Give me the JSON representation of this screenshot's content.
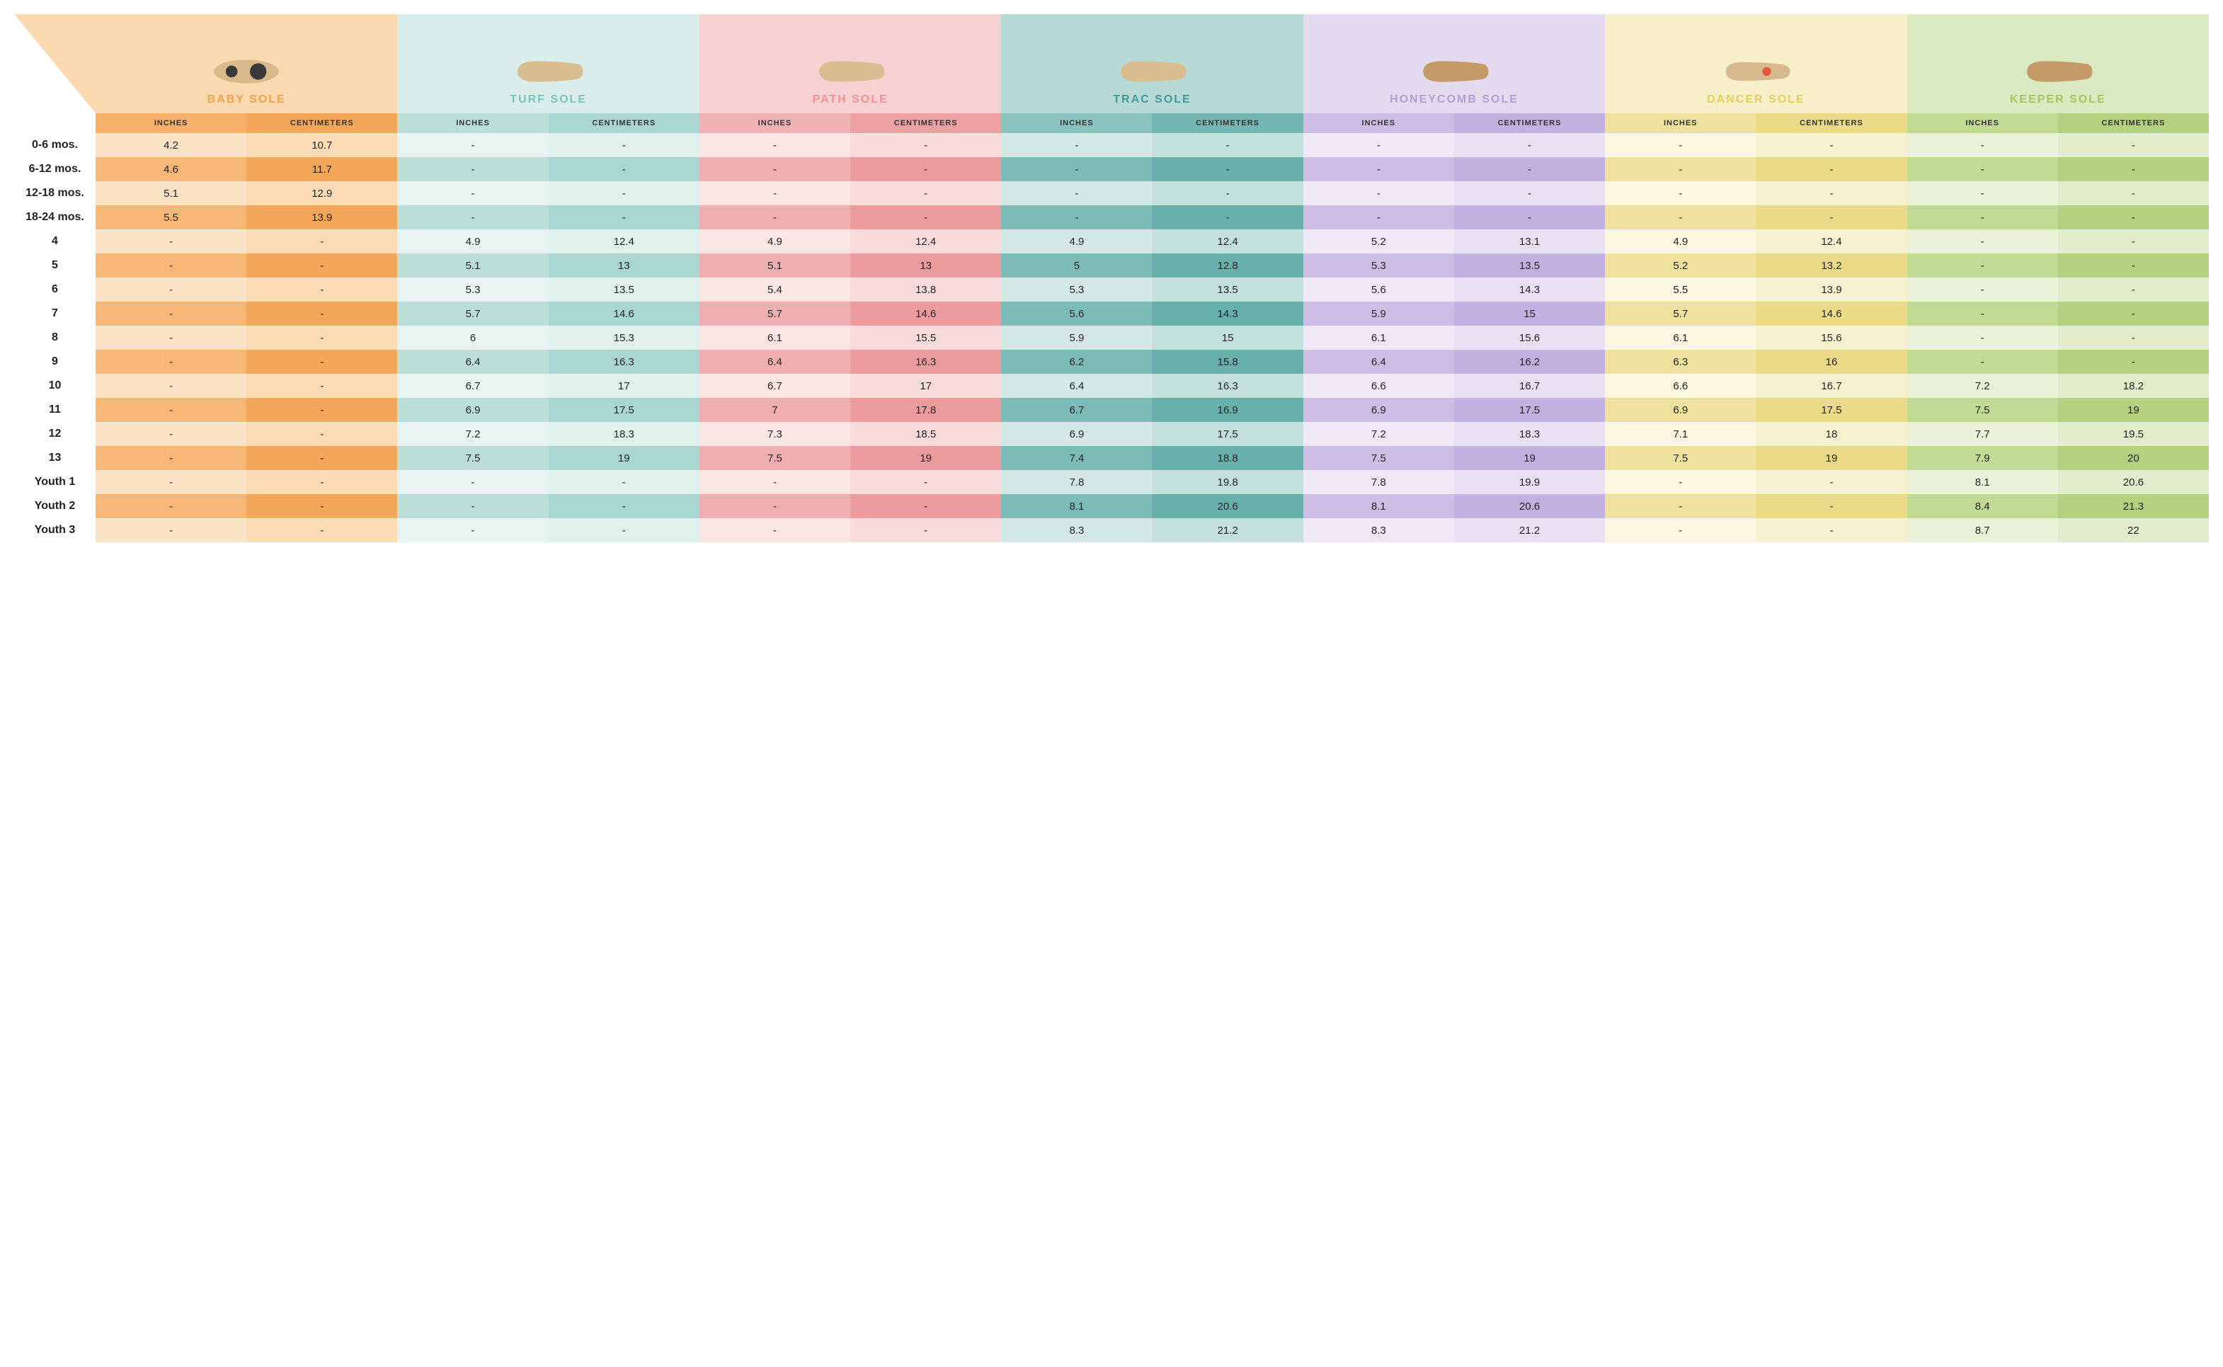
{
  "row_label_width": "115px",
  "col_width": "1fr",
  "sub_labels": {
    "inches": "INCHES",
    "cm": "CENTIMETERS"
  },
  "soles": [
    {
      "key": "baby",
      "label": "BABY SOLE",
      "label_color": "#f2a24a",
      "header_bg": "#fbd9b0",
      "sub_bg_inches": "#f7b06a",
      "sub_bg_cm": "#f4a659",
      "row_light_inches": "#fbe3c5",
      "row_light_cm": "#fbdcb6",
      "row_dark_inches": "#f7b877",
      "row_dark_cm": "#f4a659"
    },
    {
      "key": "turf",
      "label": "TURF SOLE",
      "label_color": "#79c6bd",
      "header_bg": "#daedea",
      "sub_bg_inches": "#bcded9",
      "sub_bg_cm": "#a9d6d0",
      "row_light_inches": "#e9f3f1",
      "row_light_cm": "#dff0ed",
      "row_dark_inches": "#bcded9",
      "row_dark_cm": "#a9d6d0"
    },
    {
      "key": "path",
      "label": "PATH SOLE",
      "label_color": "#f19193",
      "header_bg": "#f7d1d2",
      "sub_bg_inches": "#f0b3b4",
      "sub_bg_cm": "#eda1a2",
      "row_light_inches": "#fbe5e5",
      "row_light_cm": "#f9dbdc",
      "row_dark_inches": "#efafb0",
      "row_dark_cm": "#ec9b9d"
    },
    {
      "key": "trac",
      "label": "TRAC SOLE",
      "label_color": "#3f9a98",
      "header_bg": "#b6d9d6",
      "sub_bg_inches": "#8ac2be",
      "sub_bg_cm": "#74b6b1",
      "row_light_inches": "#d4e8e6",
      "row_light_cm": "#c4e0dd",
      "row_dark_inches": "#7dbbb7",
      "row_dark_cm": "#67b0ab"
    },
    {
      "key": "honeycomb",
      "label": "HONEYCOMB SOLE",
      "label_color": "#b39ed8",
      "header_bg": "#e3daf0",
      "sub_bg_inches": "#cdbee6",
      "sub_bg_cm": "#c1b0e0",
      "row_light_inches": "#efe9f7",
      "row_light_cm": "#e8e0f3",
      "row_dark_inches": "#cdbee6",
      "row_dark_cm": "#c1b0e0"
    },
    {
      "key": "dancer",
      "label": "DANCER SOLE",
      "label_color": "#e3cf5c",
      "header_bg": "#f6efc9",
      "sub_bg_inches": "#efe29e",
      "sub_bg_cm": "#ebdb88",
      "row_light_inches": "#faf6df",
      "row_light_cm": "#f7f1d0",
      "row_dark_inches": "#efe29e",
      "row_dark_cm": "#ebdb88"
    },
    {
      "key": "keeper",
      "label": "KEEPER SOLE",
      "label_color": "#a2c85d",
      "header_bg": "#dbe9c1",
      "sub_bg_inches": "#c1da94",
      "sub_bg_cm": "#b3d17e",
      "row_light_inches": "#eaf2da",
      "row_light_cm": "#e1edcb",
      "row_dark_inches": "#c1da94",
      "row_dark_cm": "#b3d17e"
    }
  ],
  "rows": [
    {
      "label": "0-6 mos.",
      "values": [
        [
          "4.2",
          "10.7"
        ],
        [
          "-",
          "-"
        ],
        [
          "-",
          "-"
        ],
        [
          "-",
          "-"
        ],
        [
          "-",
          "-"
        ],
        [
          "-",
          "-"
        ],
        [
          "-",
          "-"
        ]
      ]
    },
    {
      "label": "6-12 mos.",
      "values": [
        [
          "4.6",
          "11.7"
        ],
        [
          "-",
          "-"
        ],
        [
          "-",
          "-"
        ],
        [
          "-",
          "-"
        ],
        [
          "-",
          "-"
        ],
        [
          "-",
          "-"
        ],
        [
          "-",
          "-"
        ]
      ]
    },
    {
      "label": "12-18 mos.",
      "values": [
        [
          "5.1",
          "12.9"
        ],
        [
          "-",
          "-"
        ],
        [
          "-",
          "-"
        ],
        [
          "-",
          "-"
        ],
        [
          "-",
          "-"
        ],
        [
          "-",
          "-"
        ],
        [
          "-",
          "-"
        ]
      ]
    },
    {
      "label": "18-24 mos.",
      "values": [
        [
          "5.5",
          "13.9"
        ],
        [
          "-",
          "-"
        ],
        [
          "-",
          "-"
        ],
        [
          "-",
          "-"
        ],
        [
          "-",
          "-"
        ],
        [
          "-",
          "-"
        ],
        [
          "-",
          "-"
        ]
      ]
    },
    {
      "label": "4",
      "values": [
        [
          "-",
          "-"
        ],
        [
          "4.9",
          "12.4"
        ],
        [
          "4.9",
          "12.4"
        ],
        [
          "4.9",
          "12.4"
        ],
        [
          "5.2",
          "13.1"
        ],
        [
          "4.9",
          "12.4"
        ],
        [
          "-",
          "-"
        ]
      ]
    },
    {
      "label": "5",
      "values": [
        [
          "-",
          "-"
        ],
        [
          "5.1",
          "13"
        ],
        [
          "5.1",
          "13"
        ],
        [
          "5",
          "12.8"
        ],
        [
          "5.3",
          "13.5"
        ],
        [
          "5.2",
          "13.2"
        ],
        [
          "-",
          "-"
        ]
      ]
    },
    {
      "label": "6",
      "values": [
        [
          "-",
          "-"
        ],
        [
          "5.3",
          "13.5"
        ],
        [
          "5.4",
          "13.8"
        ],
        [
          "5.3",
          "13.5"
        ],
        [
          "5.6",
          "14.3"
        ],
        [
          "5.5",
          "13.9"
        ],
        [
          "-",
          "-"
        ]
      ]
    },
    {
      "label": "7",
      "values": [
        [
          "-",
          "-"
        ],
        [
          "5.7",
          "14.6"
        ],
        [
          "5.7",
          "14.6"
        ],
        [
          "5.6",
          "14.3"
        ],
        [
          "5.9",
          "15"
        ],
        [
          "5.7",
          "14.6"
        ],
        [
          "-",
          "-"
        ]
      ]
    },
    {
      "label": "8",
      "values": [
        [
          "-",
          "-"
        ],
        [
          "6",
          "15.3"
        ],
        [
          "6.1",
          "15.5"
        ],
        [
          "5.9",
          "15"
        ],
        [
          "6.1",
          "15.6"
        ],
        [
          "6.1",
          "15.6"
        ],
        [
          "-",
          "-"
        ]
      ]
    },
    {
      "label": "9",
      "values": [
        [
          "-",
          "-"
        ],
        [
          "6.4",
          "16.3"
        ],
        [
          "6.4",
          "16.3"
        ],
        [
          "6.2",
          "15.8"
        ],
        [
          "6.4",
          "16.2"
        ],
        [
          "6.3",
          "16"
        ],
        [
          "-",
          "-"
        ]
      ]
    },
    {
      "label": "10",
      "values": [
        [
          "-",
          "-"
        ],
        [
          "6.7",
          "17"
        ],
        [
          "6.7",
          "17"
        ],
        [
          "6.4",
          "16.3"
        ],
        [
          "6.6",
          "16.7"
        ],
        [
          "6.6",
          "16.7"
        ],
        [
          "7.2",
          "18.2"
        ]
      ]
    },
    {
      "label": "11",
      "values": [
        [
          "-",
          "-"
        ],
        [
          "6.9",
          "17.5"
        ],
        [
          "7",
          "17.8"
        ],
        [
          "6.7",
          "16.9"
        ],
        [
          "6.9",
          "17.5"
        ],
        [
          "6.9",
          "17.5"
        ],
        [
          "7.5",
          "19"
        ]
      ]
    },
    {
      "label": "12",
      "values": [
        [
          "-",
          "-"
        ],
        [
          "7.2",
          "18.3"
        ],
        [
          "7.3",
          "18.5"
        ],
        [
          "6.9",
          "17.5"
        ],
        [
          "7.2",
          "18.3"
        ],
        [
          "7.1",
          "18"
        ],
        [
          "7.7",
          "19.5"
        ]
      ]
    },
    {
      "label": "13",
      "values": [
        [
          "-",
          "-"
        ],
        [
          "7.5",
          "19"
        ],
        [
          "7.5",
          "19"
        ],
        [
          "7.4",
          "18.8"
        ],
        [
          "7.5",
          "19"
        ],
        [
          "7.5",
          "19"
        ],
        [
          "7.9",
          "20"
        ]
      ]
    },
    {
      "label": "Youth 1",
      "values": [
        [
          "-",
          "-"
        ],
        [
          "-",
          "-"
        ],
        [
          "-",
          "-"
        ],
        [
          "7.8",
          "19.8"
        ],
        [
          "7.8",
          "19.9"
        ],
        [
          "-",
          "-"
        ],
        [
          "8.1",
          "20.6"
        ]
      ]
    },
    {
      "label": "Youth 2",
      "values": [
        [
          "-",
          "-"
        ],
        [
          "-",
          "-"
        ],
        [
          "-",
          "-"
        ],
        [
          "8.1",
          "20.6"
        ],
        [
          "8.1",
          "20.6"
        ],
        [
          "-",
          "-"
        ],
        [
          "8.4",
          "21.3"
        ]
      ]
    },
    {
      "label": "Youth 3",
      "values": [
        [
          "-",
          "-"
        ],
        [
          "-",
          "-"
        ],
        [
          "-",
          "-"
        ],
        [
          "8.3",
          "21.2"
        ],
        [
          "8.3",
          "21.2"
        ],
        [
          "-",
          "-"
        ],
        [
          "8.7",
          "22"
        ]
      ]
    }
  ],
  "sole_svgs": {
    "baby": "baby",
    "turf": "generic_tan",
    "path": "generic_tan",
    "trac": "generic_tan",
    "honeycomb": "generic_brown",
    "dancer": "dancer",
    "keeper": "generic_brown"
  }
}
